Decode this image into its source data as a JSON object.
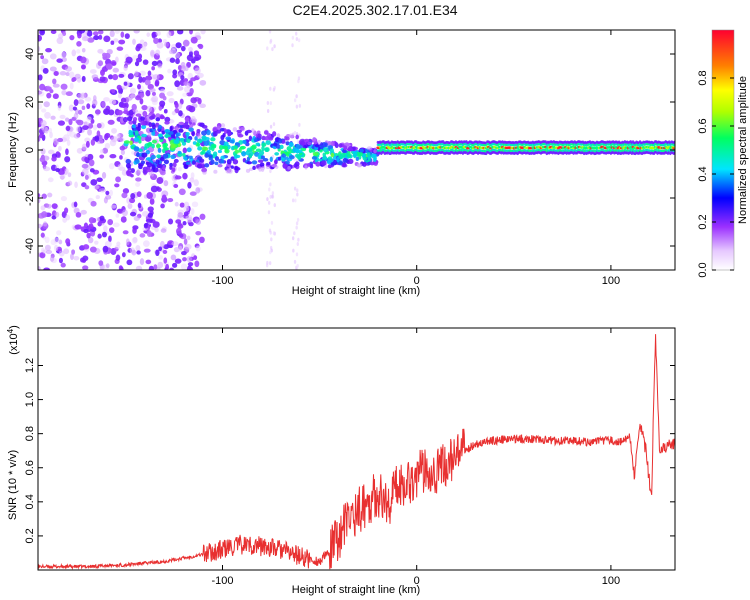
{
  "title": "C2E4.2025.302.17.01.E34",
  "chart_data": [
    {
      "type": "heatmap",
      "title": "C2E4.2025.302.17.01.E34",
      "xlabel": "Height of straight line (km)",
      "ylabel": "Frequency (Hz)",
      "xlim": [
        -195,
        133
      ],
      "ylim": [
        -50,
        50
      ],
      "xticks": [
        -100,
        0,
        100
      ],
      "yticks": [
        -40,
        -20,
        0,
        20,
        40
      ],
      "colorbar": {
        "label": "Normalized spectral amplitude",
        "range": [
          0,
          1
        ],
        "ticks": [
          "0.0",
          "0.2",
          "0.4",
          "0.6",
          "0.8"
        ],
        "colormap": [
          "#ffffff",
          "#9b30ff",
          "#0000ff",
          "#00e5ff",
          "#00ff00",
          "#ffff00",
          "#ff8000",
          "#ff0000"
        ]
      },
      "features": {
        "noise_band_x": [
          -195,
          -120
        ],
        "signal_line_start_x": -20,
        "signal_center_frequency": 1
      }
    },
    {
      "type": "line",
      "xlabel": "Height of straight line (km)",
      "ylabel": "SNR (10 * v/v)",
      "yscale_label": "(x10",
      "yscale_exp": "4",
      "xlim": [
        -195,
        133
      ],
      "ylim": [
        0,
        1.42
      ],
      "xticks": [
        -100,
        0,
        100
      ],
      "yticks": [
        "0.2",
        "0.4",
        "0.6",
        "0.8",
        "1.0",
        "1.2"
      ],
      "ytick_values": [
        0.2,
        0.4,
        0.6,
        0.8,
        1.0,
        1.2
      ],
      "color": "#e83030",
      "series": [
        {
          "name": "SNR",
          "x": [
            -195,
            -170,
            -150,
            -130,
            -115,
            -100,
            -90,
            -80,
            -70,
            -60,
            -55,
            -50,
            -45,
            -40,
            -35,
            -30,
            -25,
            -20,
            -15,
            -10,
            -5,
            0,
            5,
            10,
            15,
            20,
            25,
            30,
            40,
            50,
            60,
            70,
            80,
            90,
            100,
            105,
            110,
            112,
            115,
            118,
            120,
            121,
            122,
            123,
            125,
            128,
            133
          ],
          "y": [
            0.02,
            0.02,
            0.03,
            0.05,
            0.08,
            0.12,
            0.15,
            0.14,
            0.12,
            0.08,
            0.06,
            0.05,
            0.1,
            0.2,
            0.3,
            0.35,
            0.4,
            0.45,
            0.38,
            0.5,
            0.52,
            0.55,
            0.6,
            0.58,
            0.62,
            0.66,
            0.7,
            0.74,
            0.76,
            0.77,
            0.77,
            0.76,
            0.76,
            0.75,
            0.76,
            0.75,
            0.78,
            0.55,
            0.85,
            0.7,
            0.5,
            0.42,
            1.0,
            1.38,
            0.72,
            0.73,
            0.73
          ]
        }
      ]
    }
  ]
}
